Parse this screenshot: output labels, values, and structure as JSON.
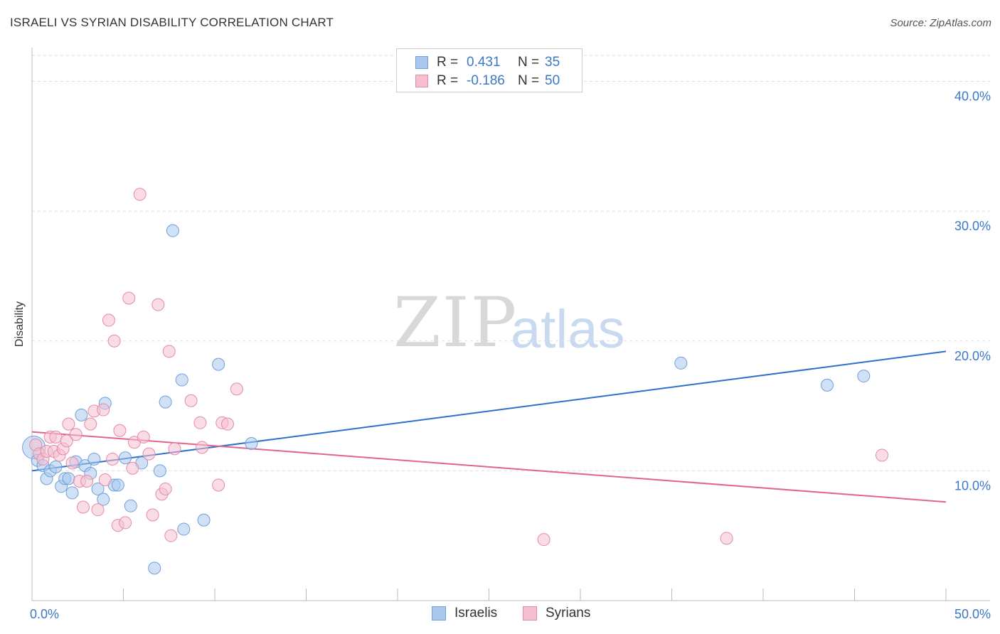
{
  "header": {
    "title": "ISRAELI VS SYRIAN DISABILITY CORRELATION CHART",
    "source": "Source: ZipAtlas.com"
  },
  "watermark": {
    "zip": "ZIP",
    "atlas": "atlas"
  },
  "legend": {
    "rows": [
      {
        "r_label": "R =",
        "r_value": "0.431",
        "n_label": "N =",
        "n_value": "35",
        "color": "#aac8ee",
        "border": "#6f9fd8"
      },
      {
        "r_label": "R =",
        "r_value": "-0.186",
        "n_label": "N =",
        "n_value": "50",
        "color": "#f6bfd0",
        "border": "#e48aa8"
      }
    ]
  },
  "bottom_legend": [
    {
      "label": "Israelis",
      "color": "#aac8ee",
      "border": "#6f9fd8"
    },
    {
      "label": "Syrians",
      "color": "#f6bfd0",
      "border": "#e48aa8"
    }
  ],
  "chart_data": {
    "type": "scatter",
    "title": "ISRAELI VS SYRIAN DISABILITY CORRELATION CHART",
    "xlabel": "",
    "ylabel": "Disability",
    "xlim": [
      0,
      50
    ],
    "ylim": [
      0,
      42
    ],
    "x_tick_labels": [
      {
        "value": 0,
        "label": "0.0%"
      },
      {
        "value": 50,
        "label": "50.0%"
      }
    ],
    "y_tick_labels": [
      {
        "value": 10,
        "label": "10.0%"
      },
      {
        "value": 20,
        "label": "20.0%"
      },
      {
        "value": 30,
        "label": "30.0%"
      },
      {
        "value": 40,
        "label": "40.0%"
      }
    ],
    "grid": true,
    "series": [
      {
        "name": "Israelis",
        "color": "#6f9fd8",
        "fill": "#aac8ee",
        "line_color": "#2f6fcc",
        "trend": {
          "x": [
            0,
            50
          ],
          "y": [
            10.0,
            19.2
          ]
        },
        "points": [
          [
            0.1,
            11.8
          ],
          [
            0.3,
            10.8
          ],
          [
            0.6,
            10.4
          ],
          [
            0.8,
            9.4
          ],
          [
            1.0,
            10.0
          ],
          [
            1.3,
            10.3
          ],
          [
            1.6,
            8.8
          ],
          [
            1.8,
            9.4
          ],
          [
            2.0,
            9.4
          ],
          [
            2.2,
            8.3
          ],
          [
            2.4,
            10.7
          ],
          [
            2.7,
            14.3
          ],
          [
            2.9,
            10.4
          ],
          [
            3.2,
            9.8
          ],
          [
            3.4,
            10.9
          ],
          [
            3.6,
            8.6
          ],
          [
            3.9,
            7.8
          ],
          [
            4.0,
            15.2
          ],
          [
            4.5,
            8.9
          ],
          [
            4.7,
            8.9
          ],
          [
            5.1,
            11.0
          ],
          [
            5.4,
            7.3
          ],
          [
            6.0,
            10.6
          ],
          [
            6.7,
            2.5
          ],
          [
            7.0,
            10.0
          ],
          [
            7.3,
            15.3
          ],
          [
            7.7,
            28.5
          ],
          [
            8.2,
            17.0
          ],
          [
            8.3,
            5.5
          ],
          [
            9.4,
            6.2
          ],
          [
            10.2,
            18.2
          ],
          [
            12.0,
            12.1
          ],
          [
            35.5,
            18.3
          ],
          [
            43.5,
            16.6
          ],
          [
            45.5,
            17.3
          ]
        ]
      },
      {
        "name": "Syrians",
        "color": "#e48aa8",
        "fill": "#f6bfd0",
        "line_color": "#e0648f",
        "trend": {
          "x": [
            0,
            50
          ],
          "y": [
            13.0,
            7.6
          ]
        },
        "points": [
          [
            0.2,
            12.0
          ],
          [
            0.4,
            11.3
          ],
          [
            0.6,
            10.9
          ],
          [
            0.8,
            11.5
          ],
          [
            1.0,
            12.6
          ],
          [
            1.2,
            11.5
          ],
          [
            1.3,
            12.6
          ],
          [
            1.5,
            11.2
          ],
          [
            1.7,
            11.7
          ],
          [
            1.9,
            12.3
          ],
          [
            2.0,
            13.6
          ],
          [
            2.2,
            10.6
          ],
          [
            2.4,
            12.8
          ],
          [
            2.6,
            9.2
          ],
          [
            2.8,
            7.2
          ],
          [
            3.0,
            9.2
          ],
          [
            3.2,
            13.6
          ],
          [
            3.4,
            14.6
          ],
          [
            3.6,
            7.0
          ],
          [
            3.9,
            14.7
          ],
          [
            4.0,
            9.3
          ],
          [
            4.2,
            21.6
          ],
          [
            4.4,
            10.9
          ],
          [
            4.5,
            20.0
          ],
          [
            4.7,
            5.8
          ],
          [
            4.8,
            13.1
          ],
          [
            5.1,
            6.0
          ],
          [
            5.3,
            23.3
          ],
          [
            5.5,
            10.2
          ],
          [
            5.6,
            12.2
          ],
          [
            5.9,
            31.3
          ],
          [
            6.1,
            12.6
          ],
          [
            6.4,
            11.3
          ],
          [
            6.6,
            6.6
          ],
          [
            6.9,
            22.8
          ],
          [
            7.1,
            8.2
          ],
          [
            7.3,
            8.6
          ],
          [
            7.5,
            19.2
          ],
          [
            7.6,
            5.0
          ],
          [
            7.8,
            11.7
          ],
          [
            8.7,
            15.4
          ],
          [
            9.2,
            13.7
          ],
          [
            9.3,
            11.8
          ],
          [
            10.2,
            8.9
          ],
          [
            10.4,
            13.7
          ],
          [
            10.7,
            13.6
          ],
          [
            11.2,
            16.3
          ],
          [
            28.0,
            4.7
          ],
          [
            38.0,
            4.8
          ],
          [
            46.5,
            11.2
          ]
        ]
      }
    ],
    "large_points": [
      {
        "series": "Israelis",
        "x": 0.1,
        "y": 11.8
      }
    ]
  }
}
